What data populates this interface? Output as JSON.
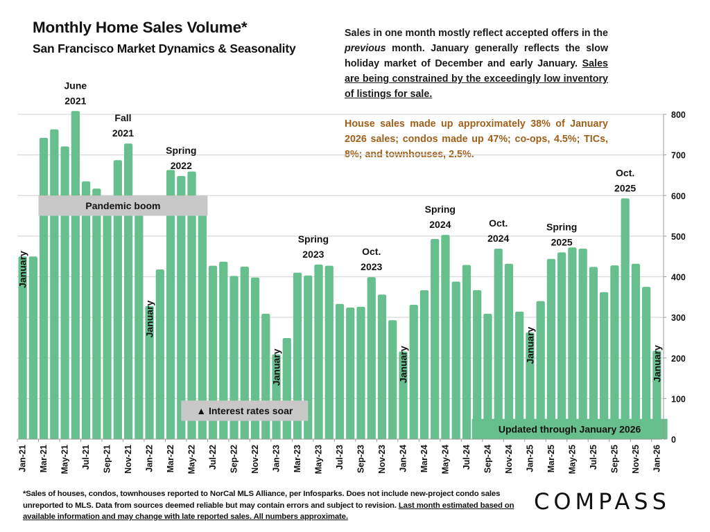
{
  "header": {
    "title": "Monthly Home Sales Volume*",
    "subtitle": "San Francisco Market Dynamics & Seasonality"
  },
  "notes": {
    "p1_a": "Sales in one month mostly reflect accepted offers in the ",
    "p1_italic": "previous",
    "p1_b": " month. January generally reflects the slow holiday market of December and early January. ",
    "p1_underlined": "Sales are being constrained by the exceedingly low inventory of listings for sale.",
    "p2": "House sales made up approximately 38% of January 2026 sales; condos made up 47%; co-ops, 4.5%; TICs, 8%; and townhouses, 2.5%."
  },
  "footnote": {
    "text": "*Sales of houses, condos, townhouses reported to NorCal MLS Alliance, per Infosparks. Does not include new-project condo sales unreported to MLS. Data from sources deemed reliable but may contain errors and subject to revision. ",
    "underlined": "Last month estimated based on available information and may change with late reported sales. All numbers approximate."
  },
  "logo": {
    "text": "COMPASS"
  },
  "colors": {
    "bar": "#66bf8c",
    "grid": "#d9d9d9",
    "box_gray": "#c8c8c8",
    "box_green": "#66bf8c",
    "accent_text": "#a0601a"
  },
  "chart_data": {
    "type": "bar",
    "title": "Monthly Home Sales Volume*",
    "xlabel": "",
    "ylabel": "",
    "ylim": [
      0,
      800
    ],
    "yticks": [
      0,
      100,
      200,
      300,
      400,
      500,
      600,
      700,
      800
    ],
    "y_axis_side": "right",
    "grid": true,
    "categories": [
      "Jan-21",
      "Feb-21",
      "Mar-21",
      "Apr-21",
      "May-21",
      "Jun-21",
      "Jul-21",
      "Aug-21",
      "Sep-21",
      "Oct-21",
      "Nov-21",
      "Dec-21",
      "Jan-22",
      "Feb-22",
      "Mar-22",
      "Apr-22",
      "May-22",
      "Jun-22",
      "Jul-22",
      "Aug-22",
      "Sep-22",
      "Oct-22",
      "Nov-22",
      "Dec-22",
      "Jan-23",
      "Feb-23",
      "Mar-23",
      "Apr-23",
      "May-23",
      "Jun-23",
      "Jul-23",
      "Aug-23",
      "Sep-23",
      "Oct-23",
      "Nov-23",
      "Dec-23",
      "Jan-24",
      "Feb-24",
      "Mar-24",
      "Apr-24",
      "May-24",
      "Jun-24",
      "Jul-24",
      "Aug-24",
      "Sep-24",
      "Oct-24",
      "Nov-24",
      "Dec-24",
      "Jan-25",
      "Feb-25",
      "Mar-25",
      "Apr-25",
      "May-25",
      "Jun-25",
      "Jul-25",
      "Aug-25",
      "Sep-25",
      "Oct-25",
      "Nov-25",
      "Dec-25",
      "Jan-26"
    ],
    "values": [
      450,
      450,
      742,
      763,
      721,
      808,
      635,
      617,
      560,
      687,
      728,
      555,
      328,
      418,
      663,
      648,
      659,
      568,
      427,
      437,
      402,
      425,
      398,
      309,
      209,
      249,
      410,
      403,
      430,
      427,
      333,
      324,
      326,
      399,
      356,
      293,
      216,
      331,
      367,
      493,
      503,
      388,
      429,
      367,
      309,
      469,
      432,
      314,
      263,
      340,
      444,
      460,
      472,
      469,
      424,
      362,
      428,
      593,
      432,
      375,
      218
    ],
    "xtick_labels_every": 2,
    "annotations": [
      {
        "index": 0,
        "text": "January",
        "rotated": true
      },
      {
        "index": 5,
        "lines": [
          "June",
          "2021"
        ]
      },
      {
        "index": 9.5,
        "lines": [
          "Fall",
          "2021"
        ]
      },
      {
        "index": 12,
        "text": "January",
        "rotated": true
      },
      {
        "index": 15,
        "lines": [
          "Spring",
          "2022"
        ]
      },
      {
        "index": 24,
        "text": "January",
        "rotated": true
      },
      {
        "index": 27.5,
        "lines": [
          "Spring",
          "2023"
        ]
      },
      {
        "index": 33,
        "lines": [
          "Oct.",
          "2023"
        ]
      },
      {
        "index": 36,
        "text": "January",
        "rotated": true
      },
      {
        "index": 39.5,
        "lines": [
          "Spring",
          "2024"
        ]
      },
      {
        "index": 45,
        "lines": [
          "Oct.",
          "2024"
        ]
      },
      {
        "index": 48,
        "text": "January",
        "rotated": true
      },
      {
        "index": 51,
        "lines": [
          "Spring",
          "2025"
        ]
      },
      {
        "index": 57,
        "lines": [
          "Oct.",
          "2025"
        ]
      },
      {
        "index": 60,
        "text": "January",
        "rotated": true
      }
    ],
    "boxes": [
      {
        "text": "Pandemic boom",
        "from_index": 2,
        "to_index": 17,
        "y_value_top": 600,
        "y_value_bottom": 550,
        "style": "gray"
      },
      {
        "text": "▲ Interest rates soar",
        "from_index": 15.5,
        "to_index": 26.5,
        "y_value_top": 95,
        "y_value_bottom": 45,
        "style": "gray"
      },
      {
        "text": "Updated through January 2026",
        "from_index": 43,
        "to_index": 60.5,
        "y_value_top": 50,
        "y_value_bottom": 0,
        "style": "green"
      }
    ]
  }
}
